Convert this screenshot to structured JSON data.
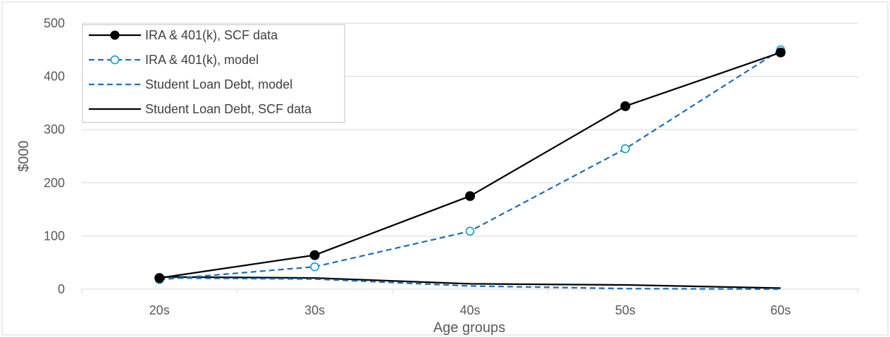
{
  "chart_data": {
    "type": "line",
    "categories": [
      "20s",
      "30s",
      "40s",
      "50s",
      "60s"
    ],
    "xlabel": "Age groups",
    "ylabel": "$000",
    "ylim": [
      0,
      500
    ],
    "yticks": [
      "0",
      "100",
      "200",
      "300",
      "400",
      "500"
    ],
    "grid": true,
    "legend_position": "top-left",
    "series": [
      {
        "name": "IRA & 401(k), SCF data",
        "values": [
          21,
          64,
          175,
          344,
          445
        ],
        "color": "#000000",
        "style": "solid",
        "marker": "filled-circle"
      },
      {
        "name": "IRA & 401(k), model",
        "values": [
          18,
          42,
          109,
          264,
          450
        ],
        "color": "#1f6fb5",
        "style": "dashed",
        "marker": "open-circle",
        "marker_color": "#1fa3d6"
      },
      {
        "name": "Student Loan Debt, model",
        "values": [
          21,
          19,
          6,
          1,
          0
        ],
        "color": "#1f6fb5",
        "style": "dashed",
        "marker": "none"
      },
      {
        "name": "Student Loan Debt, SCF data",
        "values": [
          23,
          21,
          10,
          8,
          2
        ],
        "color": "#000000",
        "style": "solid",
        "marker": "none"
      }
    ]
  }
}
